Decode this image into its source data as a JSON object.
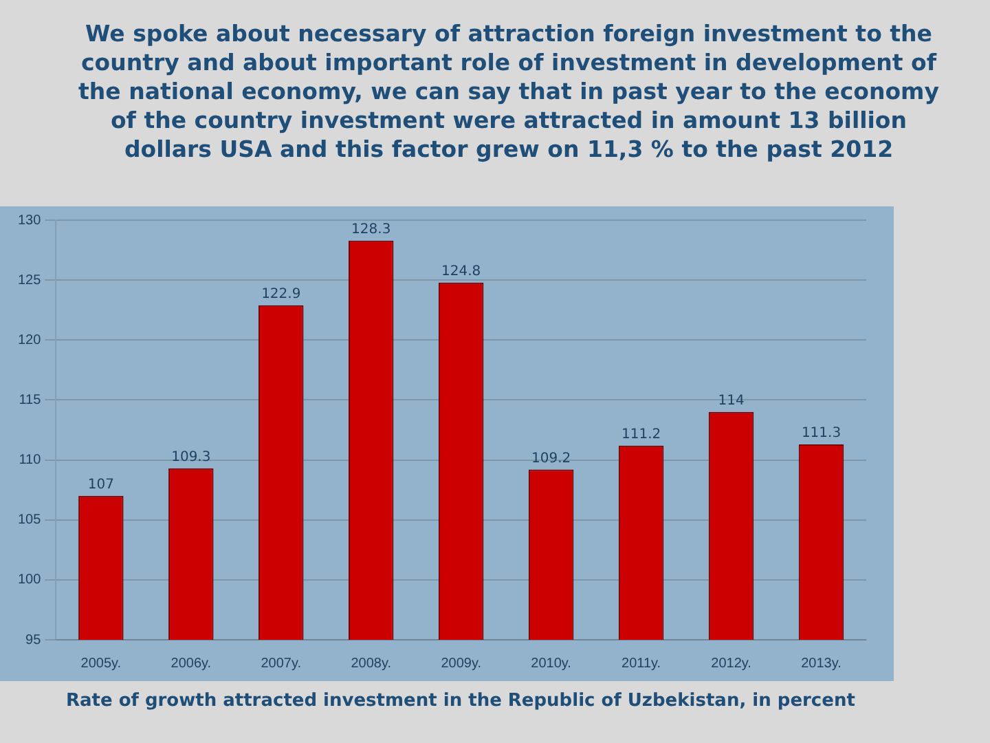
{
  "chart_data": {
    "type": "bar",
    "title": "We spoke about necessary of attraction foreign investment to the country and about  important role of investment in development of the national economy, we can say that in past year to the economy of the country  investment were attracted in amount 13 billion dollars USA and this factor grew  on 11,3 % to the past 2012",
    "categories": [
      "2005y.",
      "2006y.",
      "2007y.",
      "2008y.",
      "2009y.",
      "2010y.",
      "2011y.",
      "2012y.",
      "2013y."
    ],
    "values": [
      107,
      109.3,
      122.9,
      128.3,
      124.8,
      109.2,
      111.2,
      114,
      111.3
    ],
    "color": "#cc0000",
    "ylim": [
      95,
      130
    ],
    "yticks": [
      95,
      100,
      105,
      110,
      115,
      120,
      125,
      130
    ],
    "grid": "y",
    "data_labels": true,
    "annotations": [
      "Rate of growth attracted investment in the Republic of Uzbekistan, in percent"
    ]
  }
}
